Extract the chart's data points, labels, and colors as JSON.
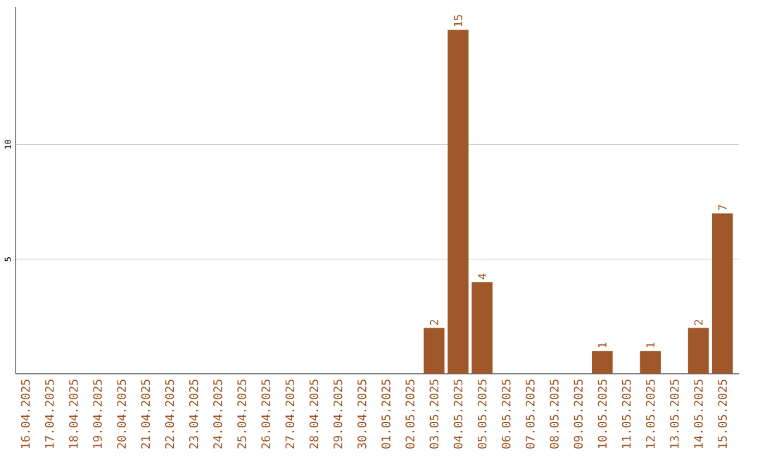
{
  "chart_data": {
    "type": "bar",
    "categories": [
      "16.04.2025",
      "17.04.2025",
      "18.04.2025",
      "19.04.2025",
      "20.04.2025",
      "21.04.2025",
      "22.04.2025",
      "23.04.2025",
      "24.04.2025",
      "25.04.2025",
      "26.04.2025",
      "27.04.2025",
      "28.04.2025",
      "29.04.2025",
      "30.04.2025",
      "01.05.2025",
      "02.05.2025",
      "03.05.2025",
      "04.05.2025",
      "05.05.2025",
      "06.05.2025",
      "07.05.2025",
      "08.05.2025",
      "09.05.2025",
      "10.05.2025",
      "11.05.2025",
      "12.05.2025",
      "13.05.2025",
      "14.05.2025",
      "15.05.2025"
    ],
    "values": [
      0,
      0,
      0,
      0,
      0,
      0,
      0,
      0,
      0,
      0,
      0,
      0,
      0,
      0,
      0,
      0,
      0,
      2,
      15,
      4,
      0,
      0,
      0,
      0,
      1,
      0,
      1,
      0,
      2,
      7
    ],
    "value_labels": [
      null,
      null,
      null,
      null,
      null,
      null,
      null,
      null,
      null,
      null,
      null,
      null,
      null,
      null,
      null,
      null,
      null,
      "2",
      "15",
      "4",
      null,
      null,
      null,
      null,
      "1",
      null,
      "1",
      null,
      "2",
      "7"
    ],
    "color": "#a0582a",
    "ylim": [
      0,
      16
    ],
    "yticks": [
      5,
      10
    ],
    "grid": "y"
  }
}
